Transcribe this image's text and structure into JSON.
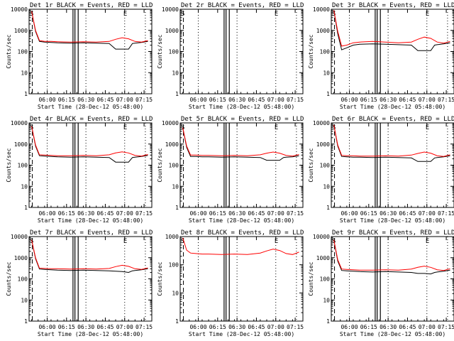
{
  "figure": {
    "xlabel_prefix": "Start Time (",
    "xlabel_suffix": ")",
    "colors": {
      "events": "#000000",
      "lld": "#ff0000",
      "background": "#ffffff",
      "axes": "#000000"
    }
  },
  "chart_data": [
    {
      "type": "line",
      "title": "Det 1r BLACK = Events, RED = LLD",
      "ylabel": "Counts/sec",
      "start": "28-Dec-12 05:48:00",
      "ylog": true,
      "ylim": [
        1,
        10000
      ],
      "yticks": [
        "1",
        "10",
        "100",
        "1000",
        "10000"
      ],
      "xticks": [
        "06:00",
        "06:15",
        "06:30",
        "06:45",
        "07:00",
        "07:15"
      ],
      "markers": [
        "S",
        "E"
      ],
      "series": [
        {
          "name": "BLACK = Events",
          "x": [
            0,
            3,
            6,
            10,
            15,
            20,
            30,
            40,
            50,
            60,
            65,
            70,
            75,
            78,
            80,
            85,
            90
          ],
          "y": [
            8000,
            900,
            300,
            280,
            270,
            260,
            250,
            260,
            250,
            240,
            130,
            130,
            130,
            240,
            250,
            270,
            300
          ]
        },
        {
          "name": "RED = LLD",
          "x": [
            0,
            3,
            6,
            10,
            15,
            20,
            30,
            40,
            50,
            60,
            65,
            70,
            75,
            80,
            85,
            90
          ],
          "y": [
            8000,
            1000,
            330,
            300,
            300,
            290,
            280,
            290,
            280,
            300,
            380,
            450,
            400,
            300,
            280,
            330
          ]
        }
      ]
    },
    {
      "type": "line",
      "title": "Det 2r BLACK = Events, RED = LLD",
      "ylabel": "Counts/sec",
      "start": "28-Dec-12 05:48:00",
      "ylog": true,
      "ylim": [
        1,
        10000
      ],
      "yticks": [
        "1",
        "10",
        "100",
        "1000",
        "10000"
      ],
      "xticks": [
        "06:00",
        "06:15",
        "06:30",
        "06:45",
        "07:00",
        "07:15"
      ],
      "markers": [
        "S",
        "E"
      ],
      "series": []
    },
    {
      "type": "line",
      "title": "Det 3r BLACK = Events, RED = LLD",
      "ylabel": "Counts/sec",
      "start": "28-Dec-12 05:48:00",
      "ylog": true,
      "ylim": [
        1,
        10000
      ],
      "yticks": [
        "1",
        "10",
        "100",
        "1000",
        "10000"
      ],
      "xticks": [
        "06:00",
        "06:15",
        "06:30",
        "06:45",
        "07:00",
        "07:15"
      ],
      "markers": [
        "S",
        "E"
      ],
      "series": [
        {
          "name": "BLACK = Events",
          "x": [
            0,
            3,
            6,
            10,
            15,
            20,
            30,
            40,
            50,
            60,
            65,
            70,
            75,
            78,
            80,
            85,
            90
          ],
          "y": [
            9000,
            700,
            120,
            150,
            200,
            220,
            230,
            220,
            210,
            200,
            110,
            110,
            110,
            200,
            210,
            230,
            260
          ]
        },
        {
          "name": "RED = LLD",
          "x": [
            0,
            3,
            6,
            10,
            15,
            20,
            30,
            40,
            50,
            60,
            65,
            70,
            75,
            80,
            85,
            90
          ],
          "y": [
            9000,
            900,
            180,
            200,
            260,
            280,
            300,
            280,
            260,
            280,
            380,
            480,
            420,
            280,
            250,
            300
          ]
        }
      ]
    },
    {
      "type": "line",
      "title": "Det 4r BLACK = Events, RED = LLD",
      "ylabel": "Counts/sec",
      "start": "28-Dec-12 05:48:00",
      "ylog": true,
      "ylim": [
        1,
        10000
      ],
      "yticks": [
        "1",
        "10",
        "100",
        "1000",
        "10000"
      ],
      "xticks": [
        "06:00",
        "06:15",
        "06:30",
        "06:45",
        "07:00",
        "07:15"
      ],
      "markers": [
        "S",
        "E"
      ],
      "series": [
        {
          "name": "BLACK = Events",
          "x": [
            0,
            3,
            6,
            10,
            15,
            20,
            30,
            40,
            50,
            60,
            65,
            70,
            75,
            78,
            80,
            85,
            90
          ],
          "y": [
            7000,
            800,
            280,
            270,
            260,
            250,
            240,
            250,
            240,
            230,
            140,
            140,
            140,
            230,
            240,
            260,
            290
          ]
        },
        {
          "name": "RED = LLD",
          "x": [
            0,
            3,
            6,
            10,
            15,
            20,
            30,
            40,
            50,
            60,
            65,
            70,
            75,
            80,
            85,
            90
          ],
          "y": [
            7000,
            900,
            310,
            300,
            290,
            280,
            280,
            290,
            280,
            310,
            380,
            430,
            380,
            290,
            270,
            320
          ]
        }
      ]
    },
    {
      "type": "line",
      "title": "Det 5r BLACK = Events, RED = LLD",
      "ylabel": "Counts/sec",
      "start": "28-Dec-12 05:48:00",
      "ylog": true,
      "ylim": [
        1,
        10000
      ],
      "yticks": [
        "1",
        "10",
        "100",
        "1000",
        "10000"
      ],
      "xticks": [
        "06:00",
        "06:15",
        "06:30",
        "06:45",
        "07:00",
        "07:15"
      ],
      "markers": [
        "S",
        "E"
      ],
      "series": [
        {
          "name": "BLACK = Events",
          "x": [
            0,
            3,
            6,
            10,
            15,
            20,
            30,
            40,
            50,
            60,
            65,
            70,
            75,
            78,
            80,
            85,
            90
          ],
          "y": [
            6000,
            700,
            260,
            260,
            250,
            250,
            240,
            250,
            240,
            230,
            170,
            170,
            170,
            230,
            240,
            250,
            280
          ]
        },
        {
          "name": "RED = LLD",
          "x": [
            0,
            3,
            6,
            10,
            15,
            20,
            30,
            40,
            50,
            60,
            65,
            70,
            75,
            80,
            85,
            90
          ],
          "y": [
            6000,
            800,
            300,
            300,
            290,
            290,
            280,
            290,
            280,
            310,
            370,
            420,
            370,
            290,
            270,
            320
          ]
        }
      ]
    },
    {
      "type": "line",
      "title": "Det 6r BLACK = Events, RED = LLD",
      "ylabel": "Counts/sec",
      "start": "28-Dec-12 05:48:00",
      "ylog": true,
      "ylim": [
        1,
        10000
      ],
      "yticks": [
        "1",
        "10",
        "100",
        "1000",
        "10000"
      ],
      "xticks": [
        "06:00",
        "06:15",
        "06:30",
        "06:45",
        "07:00",
        "07:15"
      ],
      "markers": [
        "S",
        "E"
      ],
      "series": [
        {
          "name": "BLACK = Events",
          "x": [
            0,
            3,
            6,
            10,
            15,
            20,
            30,
            40,
            50,
            60,
            65,
            70,
            75,
            78,
            80,
            85,
            90
          ],
          "y": [
            8000,
            800,
            260,
            250,
            240,
            240,
            230,
            240,
            230,
            220,
            150,
            150,
            150,
            220,
            230,
            250,
            280
          ]
        },
        {
          "name": "RED = LLD",
          "x": [
            0,
            3,
            6,
            10,
            15,
            20,
            30,
            40,
            50,
            60,
            65,
            70,
            75,
            80,
            85,
            90
          ],
          "y": [
            8000,
            900,
            290,
            280,
            280,
            270,
            270,
            280,
            270,
            300,
            360,
            420,
            370,
            280,
            260,
            310
          ]
        }
      ]
    },
    {
      "type": "line",
      "title": "Det 7r BLACK = Events, RED = LLD",
      "ylabel": "Counts/sec",
      "start": "28-Dec-12 05:48:00",
      "ylog": true,
      "ylim": [
        1,
        10000
      ],
      "yticks": [
        "1",
        "10",
        "100",
        "1000",
        "10000"
      ],
      "xticks": [
        "06:00",
        "06:15",
        "06:30",
        "06:45",
        "07:00",
        "07:15"
      ],
      "markers": [
        "S",
        "E"
      ],
      "series": [
        {
          "name": "BLACK = Events",
          "x": [
            0,
            3,
            6,
            10,
            15,
            20,
            30,
            40,
            50,
            60,
            65,
            70,
            75,
            78,
            80,
            85,
            90
          ],
          "y": [
            7000,
            900,
            290,
            280,
            270,
            260,
            250,
            260,
            250,
            240,
            230,
            220,
            200,
            240,
            250,
            270,
            300
          ]
        },
        {
          "name": "RED = LLD",
          "x": [
            0,
            3,
            6,
            10,
            15,
            20,
            30,
            40,
            50,
            60,
            65,
            70,
            75,
            80,
            85,
            90
          ],
          "y": [
            7000,
            1000,
            320,
            310,
            300,
            300,
            290,
            300,
            290,
            310,
            380,
            440,
            390,
            300,
            280,
            330
          ]
        }
      ]
    },
    {
      "type": "line",
      "title": "Det 8r BLACK = Events, RED = LLD",
      "ylabel": "Counts/sec",
      "start": "28-Dec-12 05:48:00",
      "ylog": true,
      "ylim": [
        1,
        1000
      ],
      "yticks": [
        "1",
        "10",
        "100",
        "1000"
      ],
      "xticks": [
        "06:00",
        "06:15",
        "06:30",
        "06:45",
        "07:00",
        "07:15"
      ],
      "markers": [
        "S",
        "E"
      ],
      "series": [
        {
          "name": "RED = LLD",
          "x": [
            0,
            3,
            6,
            10,
            15,
            20,
            30,
            40,
            50,
            60,
            65,
            70,
            75,
            80,
            85,
            90
          ],
          "y": [
            900,
            330,
            260,
            250,
            240,
            240,
            230,
            240,
            230,
            260,
            310,
            360,
            320,
            250,
            230,
            280
          ]
        }
      ]
    },
    {
      "type": "line",
      "title": "Det 9r BLACK = Events, RED = LLD",
      "ylabel": "Counts/sec",
      "start": "28-Dec-12 05:48:00",
      "ylog": true,
      "ylim": [
        1,
        10000
      ],
      "yticks": [
        "1",
        "10",
        "100",
        "1000",
        "10000"
      ],
      "xticks": [
        "06:00",
        "06:15",
        "06:30",
        "06:45",
        "07:00",
        "07:15"
      ],
      "markers": [
        "S",
        "E"
      ],
      "series": [
        {
          "name": "BLACK = Events",
          "x": [
            0,
            3,
            6,
            10,
            15,
            20,
            30,
            40,
            50,
            60,
            65,
            70,
            75,
            78,
            80,
            85,
            90
          ],
          "y": [
            7000,
            700,
            250,
            240,
            230,
            220,
            210,
            220,
            210,
            200,
            180,
            180,
            170,
            200,
            210,
            230,
            260
          ]
        },
        {
          "name": "RED = LLD",
          "x": [
            0,
            3,
            6,
            10,
            15,
            20,
            30,
            40,
            50,
            60,
            65,
            70,
            75,
            80,
            85,
            90
          ],
          "y": [
            7000,
            800,
            290,
            280,
            270,
            260,
            260,
            270,
            260,
            290,
            350,
            400,
            350,
            270,
            250,
            300
          ]
        }
      ]
    }
  ]
}
